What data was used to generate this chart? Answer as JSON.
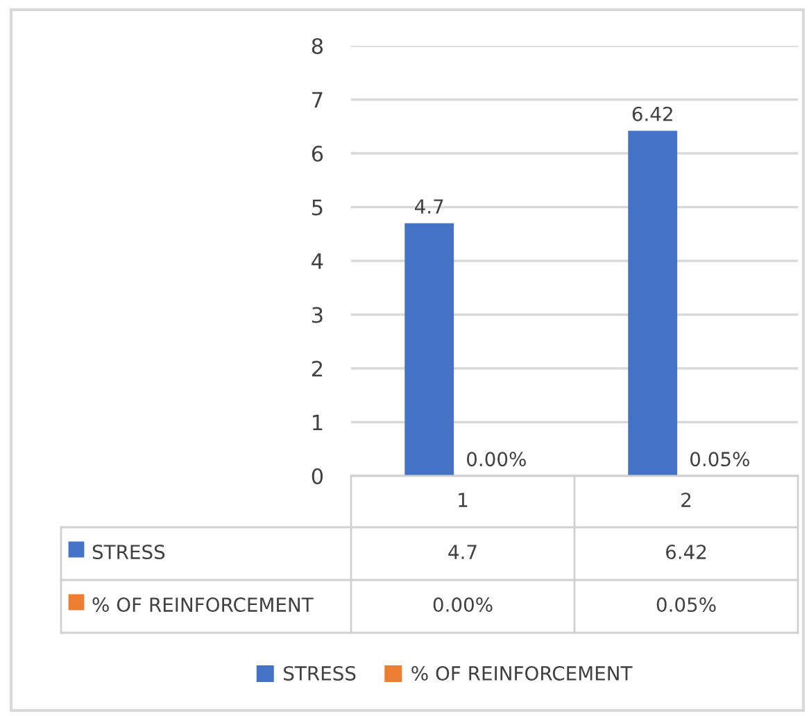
{
  "chart_data": {
    "type": "bar",
    "categories": [
      "1",
      "2"
    ],
    "series": [
      {
        "name": "STRESS",
        "color": "#4472c4",
        "values": [
          4.7,
          6.42
        ],
        "value_labels": [
          "4.7",
          "6.42"
        ]
      },
      {
        "name": "% OF REINFORCEMENT",
        "color": "#ed7d31",
        "values": [
          0,
          0.0005
        ],
        "value_labels": [
          "0.00%",
          "0.05%"
        ]
      }
    ],
    "ylim": [
      0,
      8
    ],
    "yticks": [
      0,
      1,
      2,
      3,
      4,
      5,
      6,
      7,
      8
    ],
    "grid": "y",
    "legend": "bottom"
  }
}
